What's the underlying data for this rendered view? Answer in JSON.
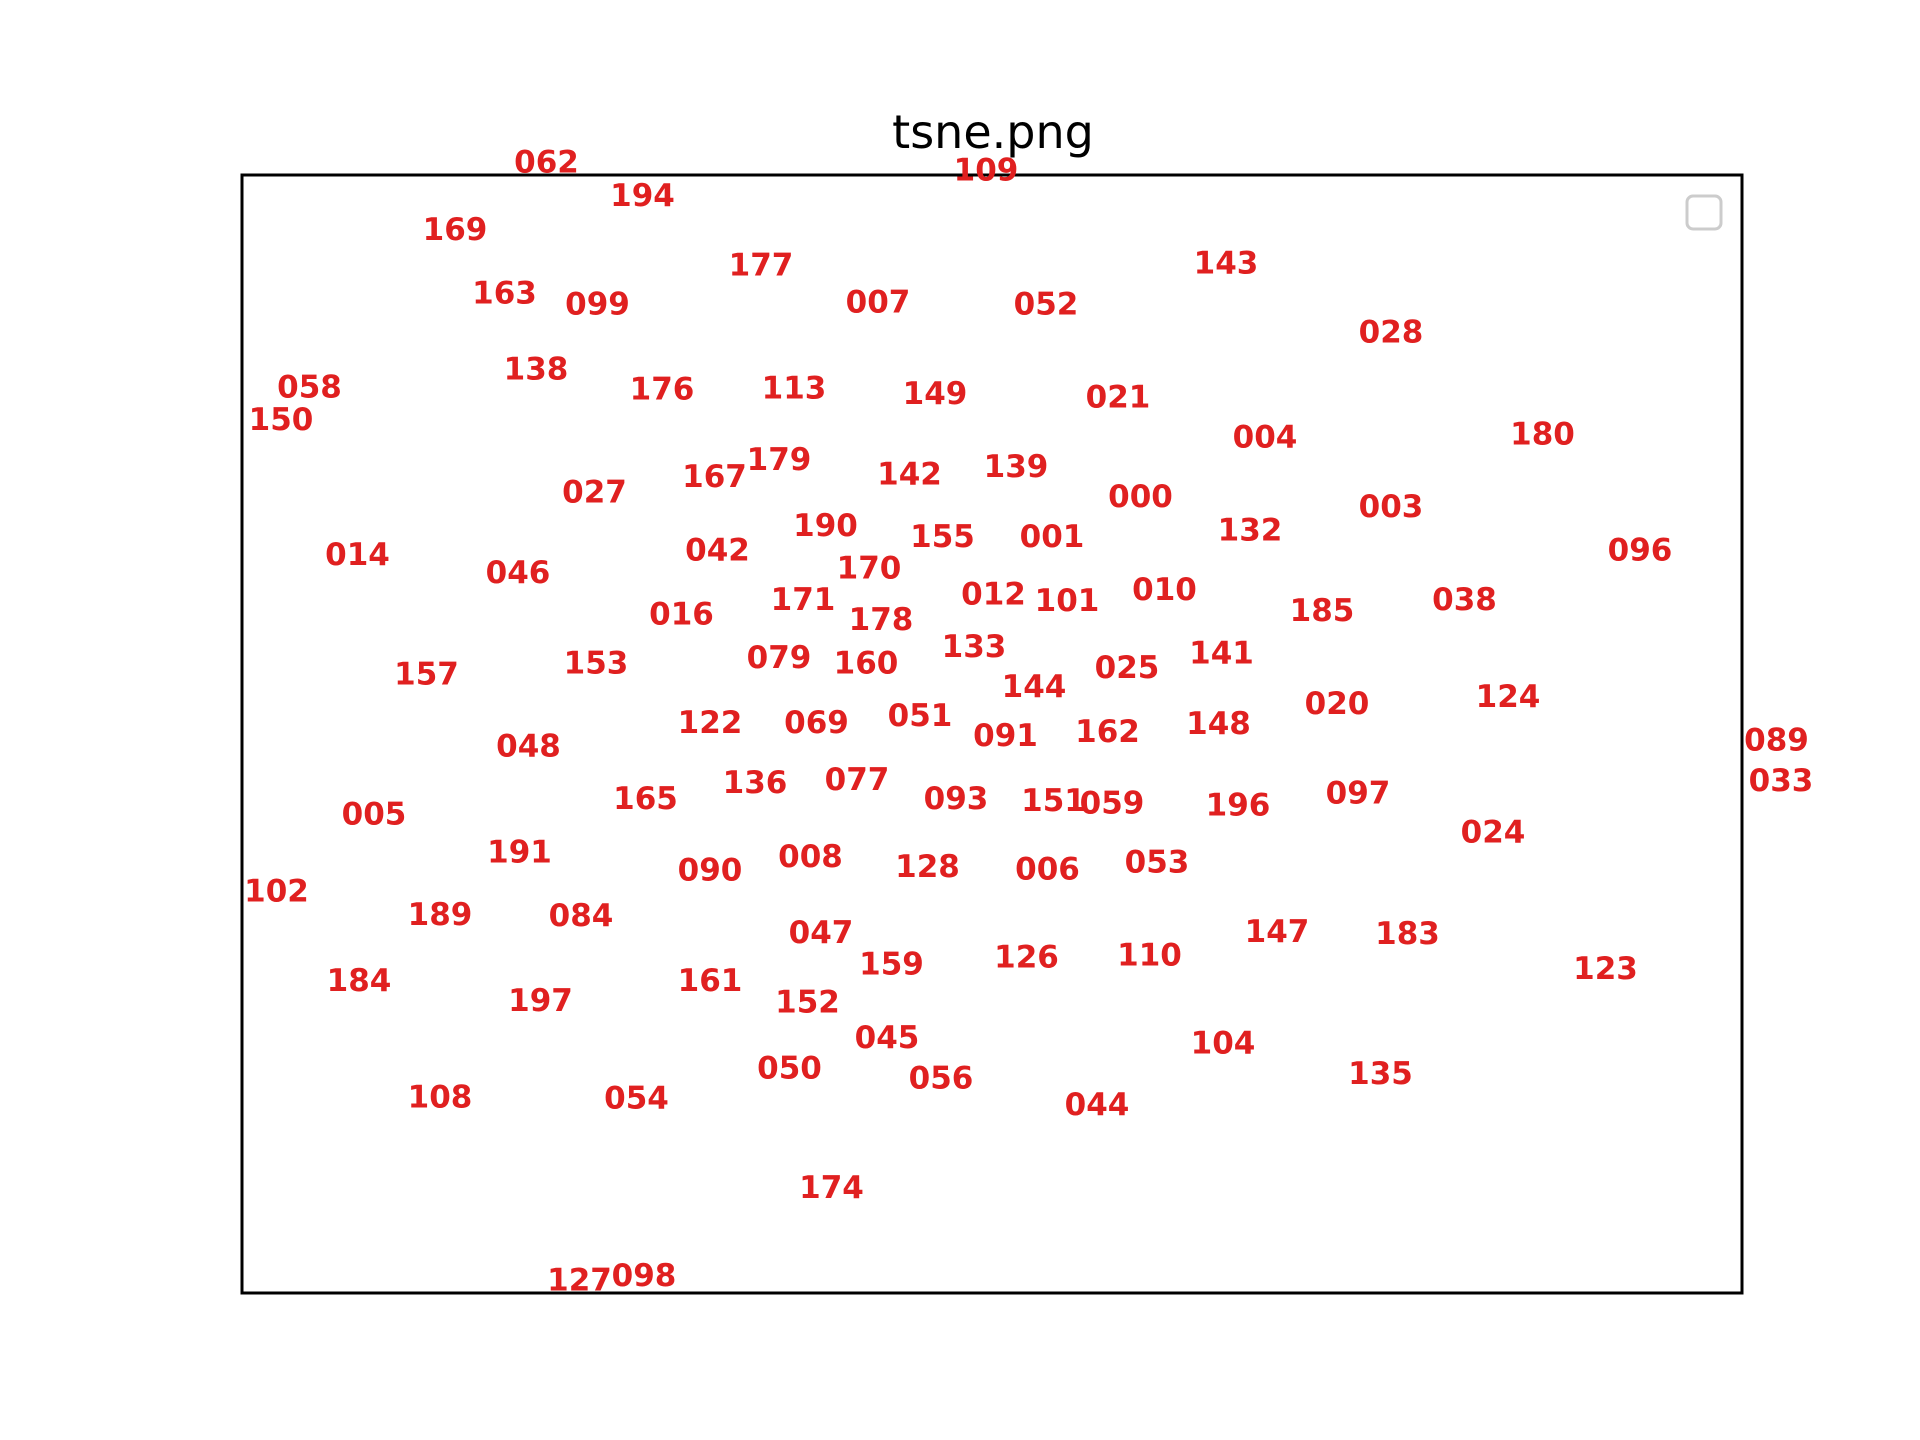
{
  "chart_data": {
    "type": "scatter",
    "title": "tsne.png",
    "xlabel": "",
    "ylabel": "",
    "xlim": [
      0,
      100
    ],
    "ylim": [
      0,
      100
    ],
    "grid": false,
    "axes_ticks": false,
    "legend": {
      "placement": "top-right",
      "entries": []
    },
    "label_color": "#e02020",
    "points": [
      {
        "label": "062",
        "x": 20.3,
        "y": 101.1
      },
      {
        "label": "194",
        "x": 26.7,
        "y": 98.1
      },
      {
        "label": "109",
        "x": 49.6,
        "y": 100.4
      },
      {
        "label": "169",
        "x": 14.2,
        "y": 95.1
      },
      {
        "label": "177",
        "x": 34.6,
        "y": 91.9
      },
      {
        "label": "143",
        "x": 65.6,
        "y": 92.1
      },
      {
        "label": "163",
        "x": 17.5,
        "y": 89.4
      },
      {
        "label": "099",
        "x": 23.7,
        "y": 88.4
      },
      {
        "label": "007",
        "x": 42.4,
        "y": 88.6
      },
      {
        "label": "052",
        "x": 53.6,
        "y": 88.4
      },
      {
        "label": "028",
        "x": 76.6,
        "y": 85.9
      },
      {
        "label": "058",
        "x": 4.5,
        "y": 81.0
      },
      {
        "label": "138",
        "x": 19.6,
        "y": 82.6
      },
      {
        "label": "176",
        "x": 28.0,
        "y": 80.8
      },
      {
        "label": "113",
        "x": 36.8,
        "y": 80.9
      },
      {
        "label": "149",
        "x": 46.2,
        "y": 80.4
      },
      {
        "label": "021",
        "x": 58.4,
        "y": 80.1
      },
      {
        "label": "150",
        "x": 2.6,
        "y": 78.1
      },
      {
        "label": "004",
        "x": 68.2,
        "y": 76.5
      },
      {
        "label": "180",
        "x": 86.7,
        "y": 76.8
      },
      {
        "label": "179",
        "x": 35.8,
        "y": 74.5
      },
      {
        "label": "167",
        "x": 31.5,
        "y": 73.0
      },
      {
        "label": "142",
        "x": 44.5,
        "y": 73.2
      },
      {
        "label": "139",
        "x": 51.6,
        "y": 73.9
      },
      {
        "label": "027",
        "x": 23.5,
        "y": 71.6
      },
      {
        "label": "000",
        "x": 59.9,
        "y": 71.2
      },
      {
        "label": "003",
        "x": 76.6,
        "y": 70.3
      },
      {
        "label": "190",
        "x": 38.9,
        "y": 68.6
      },
      {
        "label": "132",
        "x": 67.2,
        "y": 68.2
      },
      {
        "label": "155",
        "x": 46.7,
        "y": 67.6
      },
      {
        "label": "001",
        "x": 54.0,
        "y": 67.6
      },
      {
        "label": "014",
        "x": 7.7,
        "y": 66.0
      },
      {
        "label": "042",
        "x": 31.7,
        "y": 66.4
      },
      {
        "label": "096",
        "x": 93.2,
        "y": 66.4
      },
      {
        "label": "046",
        "x": 18.4,
        "y": 64.4
      },
      {
        "label": "170",
        "x": 41.8,
        "y": 64.8
      },
      {
        "label": "012",
        "x": 50.1,
        "y": 62.5
      },
      {
        "label": "171",
        "x": 37.4,
        "y": 62.0
      },
      {
        "label": "101",
        "x": 55.0,
        "y": 61.9
      },
      {
        "label": "010",
        "x": 61.5,
        "y": 62.9
      },
      {
        "label": "038",
        "x": 81.5,
        "y": 62.0
      },
      {
        "label": "016",
        "x": 29.3,
        "y": 60.7
      },
      {
        "label": "178",
        "x": 42.6,
        "y": 60.2
      },
      {
        "label": "185",
        "x": 72.0,
        "y": 61.0
      },
      {
        "label": "133",
        "x": 48.8,
        "y": 57.8
      },
      {
        "label": "141",
        "x": 65.3,
        "y": 57.2
      },
      {
        "label": "079",
        "x": 35.8,
        "y": 56.8
      },
      {
        "label": "153",
        "x": 23.6,
        "y": 56.3
      },
      {
        "label": "160",
        "x": 41.6,
        "y": 56.3
      },
      {
        "label": "025",
        "x": 59.0,
        "y": 55.9
      },
      {
        "label": "157",
        "x": 12.3,
        "y": 55.3
      },
      {
        "label": "144",
        "x": 52.8,
        "y": 54.2
      },
      {
        "label": "020",
        "x": 73.0,
        "y": 52.7
      },
      {
        "label": "124",
        "x": 84.4,
        "y": 53.3
      },
      {
        "label": "051",
        "x": 45.2,
        "y": 51.6
      },
      {
        "label": "122",
        "x": 31.2,
        "y": 51.0
      },
      {
        "label": "069",
        "x": 38.3,
        "y": 51.0
      },
      {
        "label": "148",
        "x": 65.1,
        "y": 50.9
      },
      {
        "label": "162",
        "x": 57.7,
        "y": 50.2
      },
      {
        "label": "091",
        "x": 50.9,
        "y": 49.8
      },
      {
        "label": "089",
        "x": 102.3,
        "y": 49.4
      },
      {
        "label": "048",
        "x": 19.1,
        "y": 48.9
      },
      {
        "label": "077",
        "x": 41.0,
        "y": 45.9
      },
      {
        "label": "136",
        "x": 34.2,
        "y": 45.6
      },
      {
        "label": "033",
        "x": 102.6,
        "y": 45.8
      },
      {
        "label": "097",
        "x": 74.4,
        "y": 44.7
      },
      {
        "label": "165",
        "x": 26.9,
        "y": 44.2
      },
      {
        "label": "093",
        "x": 47.6,
        "y": 44.2
      },
      {
        "label": "151",
        "x": 54.1,
        "y": 44.0
      },
      {
        "label": "059",
        "x": 58.0,
        "y": 43.8
      },
      {
        "label": "196",
        "x": 66.4,
        "y": 43.6
      },
      {
        "label": "005",
        "x": 8.8,
        "y": 42.8
      },
      {
        "label": "024",
        "x": 83.4,
        "y": 41.2
      },
      {
        "label": "191",
        "x": 18.5,
        "y": 39.4
      },
      {
        "label": "008",
        "x": 37.9,
        "y": 39.0
      },
      {
        "label": "090",
        "x": 31.2,
        "y": 37.8
      },
      {
        "label": "128",
        "x": 45.7,
        "y": 38.1
      },
      {
        "label": "006",
        "x": 53.7,
        "y": 37.9
      },
      {
        "label": "053",
        "x": 61.0,
        "y": 38.5
      },
      {
        "label": "102",
        "x": 2.3,
        "y": 35.9
      },
      {
        "label": "147",
        "x": 69.0,
        "y": 32.3
      },
      {
        "label": "189",
        "x": 13.2,
        "y": 33.8
      },
      {
        "label": "084",
        "x": 22.6,
        "y": 33.7
      },
      {
        "label": "047",
        "x": 38.6,
        "y": 32.2
      },
      {
        "label": "183",
        "x": 77.7,
        "y": 32.1
      },
      {
        "label": "159",
        "x": 43.3,
        "y": 29.4
      },
      {
        "label": "126",
        "x": 52.3,
        "y": 30.0
      },
      {
        "label": "110",
        "x": 60.5,
        "y": 30.2
      },
      {
        "label": "123",
        "x": 90.9,
        "y": 29.0
      },
      {
        "label": "184",
        "x": 7.8,
        "y": 27.9
      },
      {
        "label": "161",
        "x": 31.2,
        "y": 27.9
      },
      {
        "label": "197",
        "x": 19.9,
        "y": 26.1
      },
      {
        "label": "152",
        "x": 37.7,
        "y": 26.0
      },
      {
        "label": "045",
        "x": 43.0,
        "y": 22.8
      },
      {
        "label": "104",
        "x": 65.4,
        "y": 22.3
      },
      {
        "label": "050",
        "x": 36.5,
        "y": 20.1
      },
      {
        "label": "056",
        "x": 46.6,
        "y": 19.2
      },
      {
        "label": "135",
        "x": 75.9,
        "y": 19.6
      },
      {
        "label": "108",
        "x": 13.2,
        "y": 17.5
      },
      {
        "label": "054",
        "x": 26.3,
        "y": 17.4
      },
      {
        "label": "044",
        "x": 57.0,
        "y": 16.8
      },
      {
        "label": "174",
        "x": 39.3,
        "y": 9.4
      },
      {
        "label": "127",
        "x": 22.5,
        "y": 1.1
      },
      {
        "label": "098",
        "x": 26.8,
        "y": 1.5
      }
    ]
  }
}
